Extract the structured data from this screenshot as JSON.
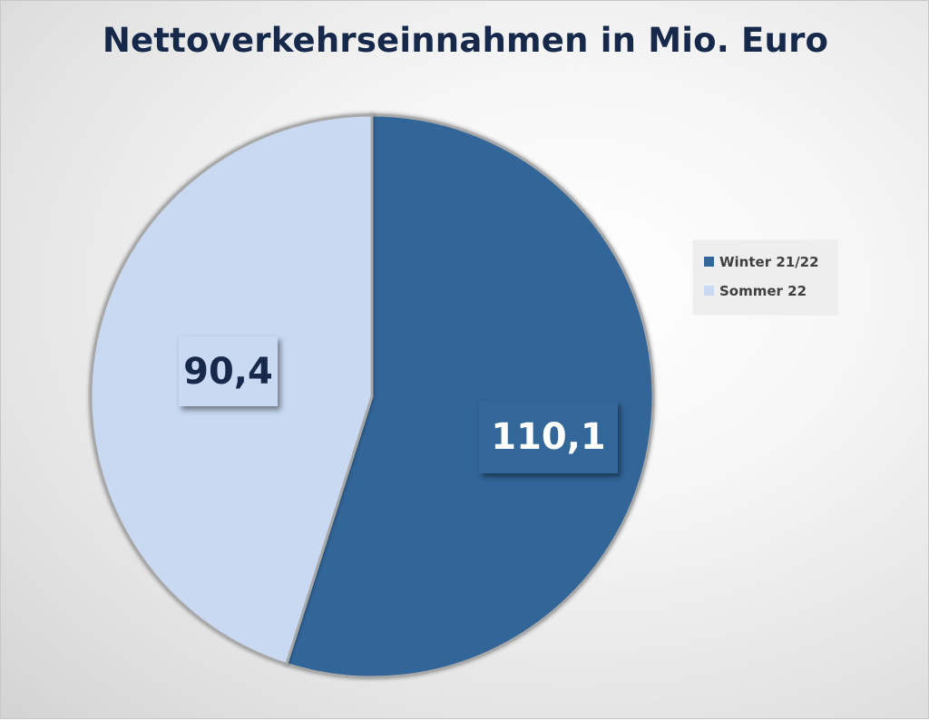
{
  "chart_data": {
    "type": "pie",
    "title": "Nettoverkehrseinnahmen in Mio. Euro",
    "slices": [
      {
        "label": "Winter 21/22",
        "value": 110.1,
        "value_label": "110,1",
        "color": "#336699"
      },
      {
        "label": "Sommer 22",
        "value": 90.4,
        "value_label": "90,4",
        "color": "#c8d9f1"
      }
    ],
    "start_angle_deg": 0,
    "direction": "clockwise",
    "legend_position": "right",
    "label_text_colors": [
      "#ffffff",
      "#16294a"
    ]
  }
}
